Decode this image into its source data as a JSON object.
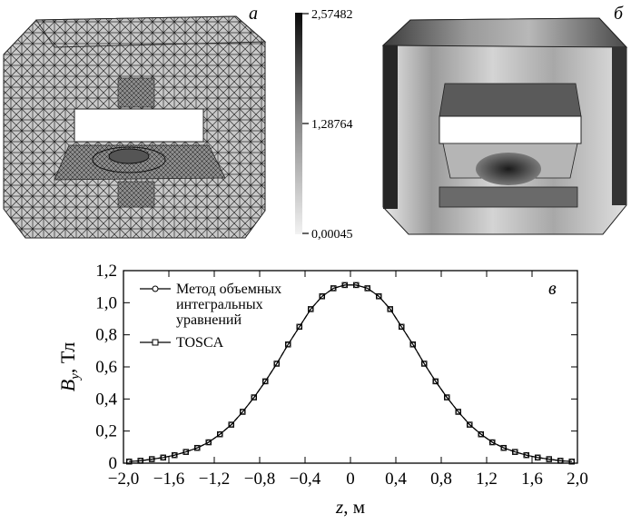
{
  "panels": {
    "a": {
      "label": "а"
    },
    "b": {
      "label": "б"
    }
  },
  "colorbar": {
    "max_label": "2,57482",
    "mid_label": "1,28764",
    "min_label": "0,00045"
  },
  "chart_data": {
    "type": "line",
    "panel_label": "в",
    "title": "",
    "xlabel": "z, м",
    "ylabel": "B_y, Тл",
    "xlim": [
      -2.0,
      2.0
    ],
    "ylim": [
      0,
      1.2
    ],
    "x_tick_values": [
      -2.0,
      -1.6,
      -1.2,
      -0.8,
      -0.4,
      0,
      0.4,
      0.8,
      1.2,
      1.6,
      2.0
    ],
    "x_tick_labels": [
      "−2,0",
      "−1,6",
      "−1,2",
      "−0,8",
      "−0,4",
      "0",
      "0,4",
      "0,8",
      "1,2",
      "1,6",
      "2,0"
    ],
    "y_tick_values": [
      0,
      0.2,
      0.4,
      0.6,
      0.8,
      1.0,
      1.2
    ],
    "y_tick_labels": [
      "0",
      "0,2",
      "0,4",
      "0,6",
      "0,8",
      "1,0",
      "1,2"
    ],
    "legend_position": "top-left",
    "series": [
      {
        "name": "Метод объемных интегральных уравнений",
        "marker": "circle",
        "line": "solid",
        "x": [
          -1.95,
          -1.85,
          -1.75,
          -1.65,
          -1.55,
          -1.45,
          -1.35,
          -1.25,
          -1.15,
          -1.05,
          -0.95,
          -0.85,
          -0.75,
          -0.65,
          -0.55,
          -0.45,
          -0.35,
          -0.25,
          -0.15,
          -0.05,
          0.05,
          0.15,
          0.25,
          0.35,
          0.45,
          0.55,
          0.65,
          0.75,
          0.85,
          0.95,
          1.05,
          1.15,
          1.25,
          1.35,
          1.45,
          1.55,
          1.65,
          1.75,
          1.85,
          1.95
        ],
        "y": [
          0.01,
          0.015,
          0.025,
          0.035,
          0.05,
          0.07,
          0.095,
          0.13,
          0.18,
          0.24,
          0.32,
          0.41,
          0.51,
          0.62,
          0.74,
          0.85,
          0.96,
          1.04,
          1.09,
          1.11,
          1.11,
          1.09,
          1.04,
          0.96,
          0.85,
          0.74,
          0.62,
          0.51,
          0.41,
          0.32,
          0.24,
          0.18,
          0.13,
          0.095,
          0.07,
          0.05,
          0.035,
          0.025,
          0.015,
          0.01
        ]
      },
      {
        "name": "TOSCA",
        "marker": "square",
        "line": "dashed",
        "x": [
          -1.95,
          -1.85,
          -1.75,
          -1.65,
          -1.55,
          -1.45,
          -1.35,
          -1.25,
          -1.15,
          -1.05,
          -0.95,
          -0.85,
          -0.75,
          -0.65,
          -0.55,
          -0.45,
          -0.35,
          -0.25,
          -0.15,
          -0.05,
          0.05,
          0.15,
          0.25,
          0.35,
          0.45,
          0.55,
          0.65,
          0.75,
          0.85,
          0.95,
          1.05,
          1.15,
          1.25,
          1.35,
          1.45,
          1.55,
          1.65,
          1.75,
          1.85,
          1.95
        ],
        "y": [
          0.01,
          0.015,
          0.025,
          0.035,
          0.05,
          0.07,
          0.095,
          0.13,
          0.18,
          0.24,
          0.32,
          0.41,
          0.51,
          0.62,
          0.74,
          0.85,
          0.96,
          1.04,
          1.09,
          1.11,
          1.11,
          1.09,
          1.04,
          0.96,
          0.85,
          0.74,
          0.62,
          0.51,
          0.41,
          0.32,
          0.24,
          0.18,
          0.13,
          0.095,
          0.07,
          0.05,
          0.035,
          0.025,
          0.015,
          0.01
        ]
      }
    ]
  }
}
